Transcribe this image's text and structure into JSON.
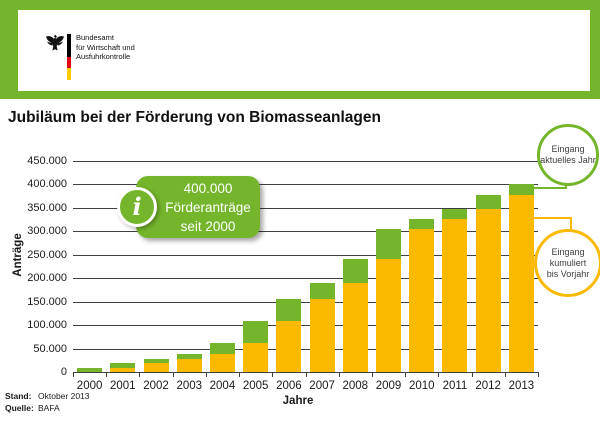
{
  "header": {
    "agency_lines": [
      "Bundesamt",
      "für Wirtschaft und",
      "Ausfuhrkontrolle"
    ]
  },
  "page_title": "Jubiläum bei der Förderung von Biomasseanlagen",
  "colors": {
    "green": "#75b52b",
    "orange": "#fbba00",
    "grid": "#3f3f3f",
    "flag_black": "#000000",
    "flag_red": "#e30613",
    "flag_gold": "#ffcc00"
  },
  "chart_data": {
    "type": "bar",
    "stacked": true,
    "title": "Jubiläum bei der Förderung von Biomasseanlagen",
    "xlabel": "Jahre",
    "ylabel": "Anträge",
    "ylim": [
      0,
      450000
    ],
    "ytick_step": 50000,
    "ytick_labels": [
      "0",
      "50.000",
      "100.000",
      "150.000",
      "200.000",
      "250.000",
      "300.000",
      "350.000",
      "400.000",
      "450.000"
    ],
    "grid": true,
    "legend_position": "right-callouts",
    "categories": [
      "2000",
      "2001",
      "2002",
      "2003",
      "2004",
      "2005",
      "2006",
      "2007",
      "2008",
      "2009",
      "2010",
      "2011",
      "2012",
      "2013"
    ],
    "series": [
      {
        "name": "Eingang kumuliert bis Vorjahr",
        "color": "#fbba00",
        "values": [
          0,
          9000,
          20000,
          28000,
          39000,
          62000,
          108000,
          155000,
          190000,
          242000,
          304000,
          327000,
          348000,
          377000
        ]
      },
      {
        "name": "Eingang aktuelles Jahr",
        "color": "#75b52b",
        "values": [
          9000,
          11000,
          8000,
          11000,
          23000,
          46000,
          47000,
          35000,
          52000,
          62000,
          23000,
          21000,
          29000,
          24000
        ]
      }
    ],
    "cumulative_totals": [
      9000,
      20000,
      28000,
      39000,
      62000,
      108000,
      155000,
      190000,
      242000,
      304000,
      327000,
      348000,
      377000,
      401000
    ],
    "annotation": {
      "icon": "info-icon",
      "lines": [
        "400.000",
        "Förderanträge",
        "seit 2000"
      ]
    },
    "callouts": [
      {
        "id": "current-year",
        "color": "#75b52b",
        "lines": [
          "Eingang",
          "aktuelles Jahr"
        ]
      },
      {
        "id": "cumulative-previous-year",
        "color": "#fbba00",
        "lines": [
          "Eingang",
          "kumuliert",
          "bis Vorjahr"
        ]
      }
    ]
  },
  "footer": {
    "stand_label": "Stand:",
    "stand_value": "Oktober 2013",
    "quelle_label": "Quelle:",
    "quelle_value": "BAFA"
  }
}
